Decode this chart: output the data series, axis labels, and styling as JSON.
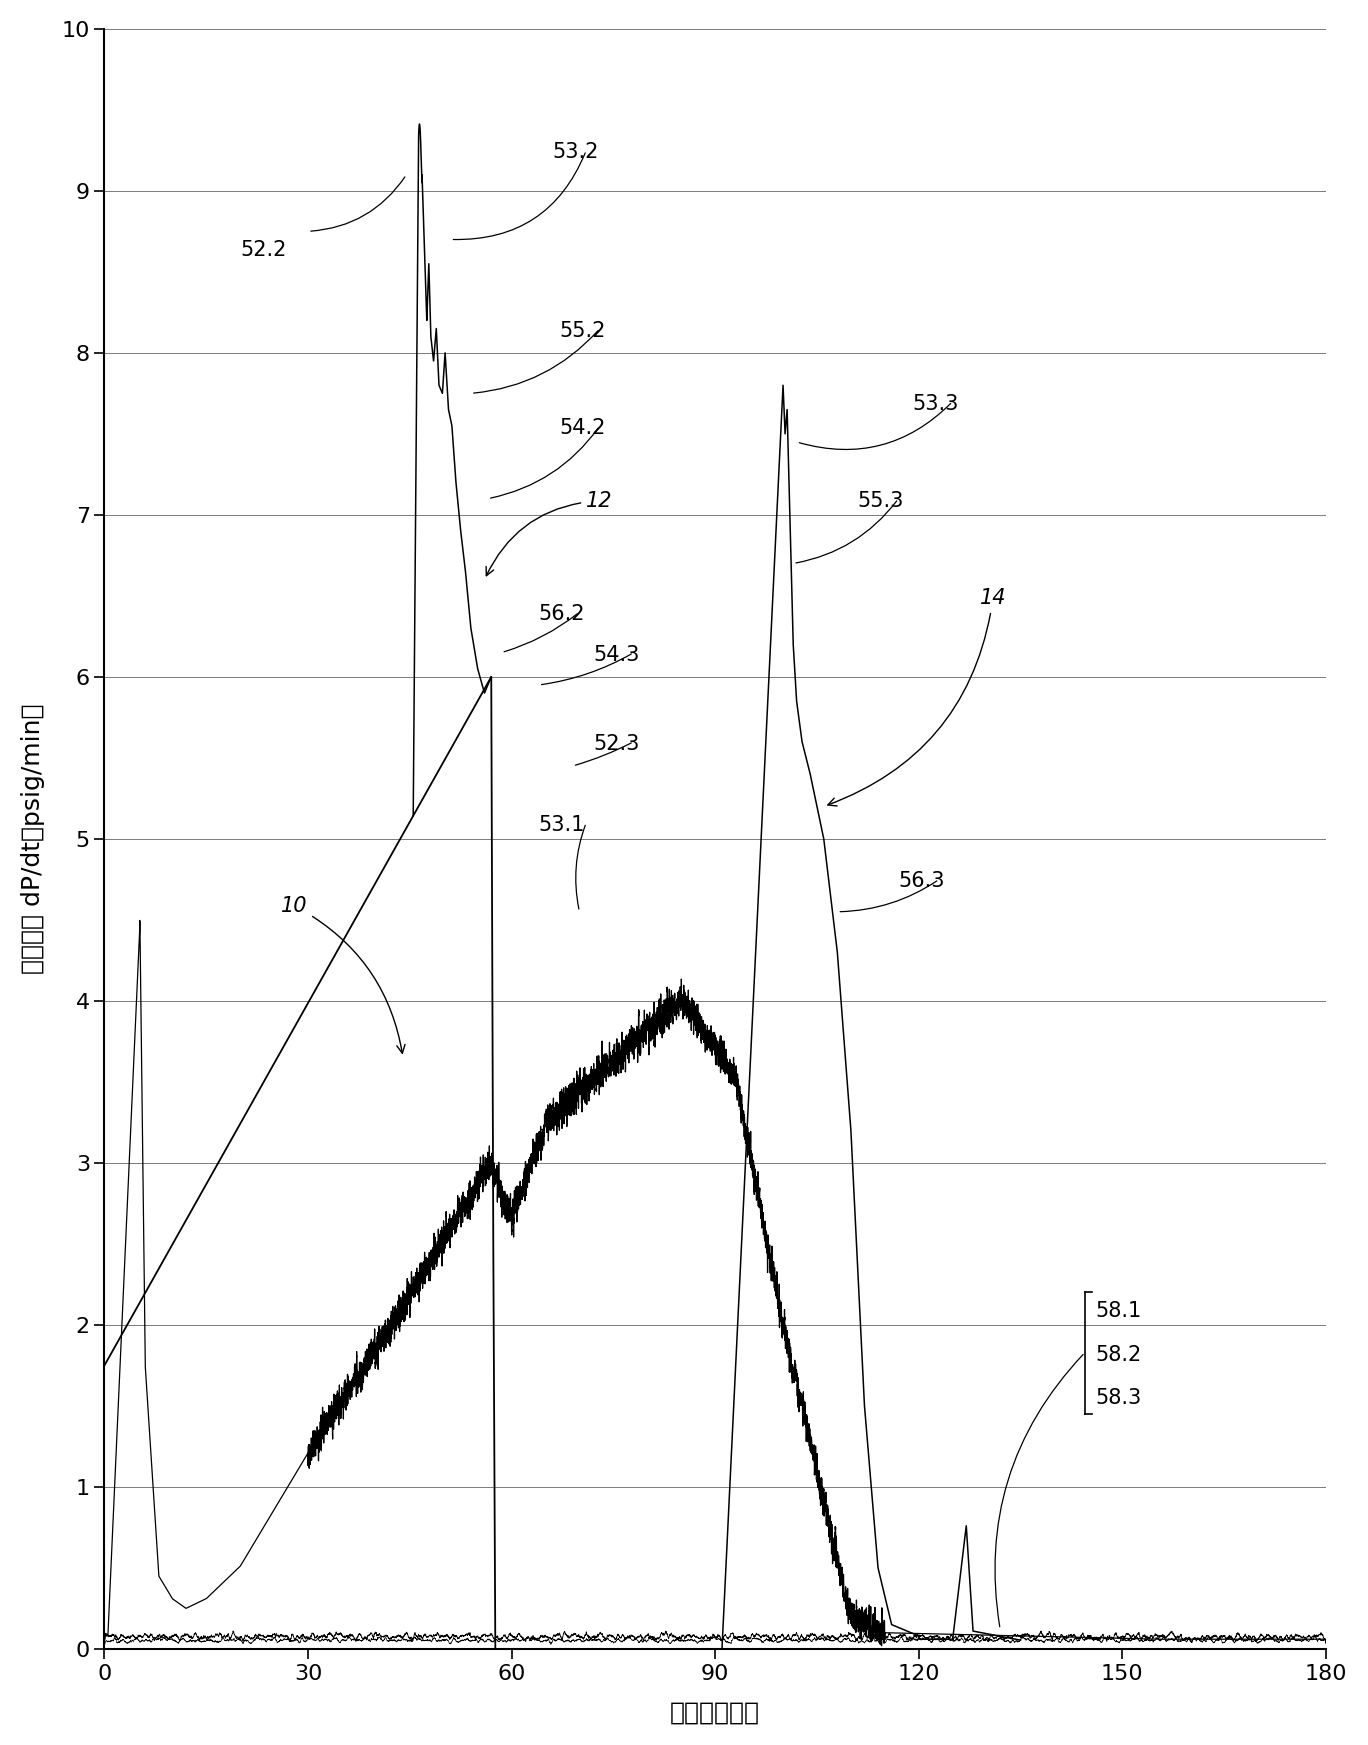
{
  "xlabel": "时间（分钟）",
  "ylabel": "氧化速率 dP/dt（psig/min）",
  "xlim": [
    0,
    180
  ],
  "ylim": [
    0,
    10
  ],
  "xticks": [
    0,
    30,
    60,
    90,
    120,
    150,
    180
  ],
  "yticks": [
    0,
    1,
    2,
    3,
    4,
    5,
    6,
    7,
    8,
    9,
    10
  ],
  "background": "#ffffff"
}
